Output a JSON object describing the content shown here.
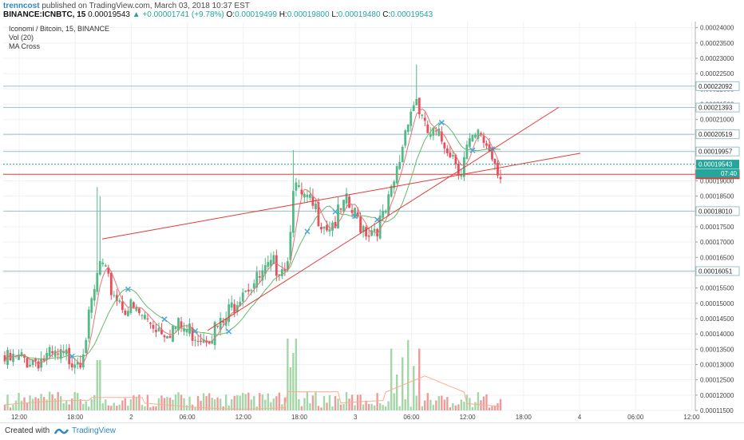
{
  "header": {
    "author": "trenncost",
    "published": "published on TradingView.com, March 03, 2018 10:37 EST",
    "symbol": "BINANCE:ICNBTC, 15",
    "last": "0.00019543",
    "change": "▲ +0.00001741 (+9.78%)",
    "o_label": "O:",
    "o": "0.00019499",
    "h_label": "H:",
    "h": "0.00019800",
    "l_label": "L:",
    "l": "0.00019480",
    "c_label": "C:",
    "c": "0.00019543"
  },
  "legend": {
    "title": "Iconomi / Bitcoin, 15, BINANCE",
    "vol": "Vol (20)",
    "ma": "MA Cross"
  },
  "footer": {
    "created": "Created with",
    "brand": "TradingView"
  },
  "chart_data": {
    "type": "candlestick",
    "ylim": [
      0.000115,
      0.000242
    ],
    "y_ticks": [
      "0.00024000",
      "0.00023500",
      "0.00023000",
      "0.00022500",
      "0.00022000",
      "0.00021500",
      "0.00021000",
      "0.00020500",
      "0.00020000",
      "0.00019500",
      "0.00019000",
      "0.00018500",
      "0.00018000",
      "0.00017500",
      "0.00017000",
      "0.00016500",
      "0.00016000",
      "0.00015500",
      "0.00015000",
      "0.00014500",
      "0.00014000",
      "0.00013500",
      "0.00013000",
      "0.00012500",
      "0.00012000",
      "0.00011500"
    ],
    "x_ticks": [
      "12:00",
      "18:00",
      "2",
      "06:00",
      "12:00",
      "18:00",
      "3",
      "06:00",
      "12:00",
      "18:00",
      "4",
      "06:00",
      "12:00"
    ],
    "horizontal_levels": [
      {
        "label": "0.00022092",
        "color": "#9cc1c7"
      },
      {
        "label": "0.00021393",
        "color": "#9cc1c7"
      },
      {
        "label": "0.00020519",
        "color": "#9cc1c7"
      },
      {
        "label": "0.00019957",
        "color": "#9cc1c7"
      },
      {
        "label": "0.00018010",
        "color": "#9cc1c7"
      },
      {
        "label": "0.00016051",
        "color": "#9cc1c7"
      },
      {
        "label": "0.00019212",
        "color": "#e53935"
      }
    ],
    "last_price": {
      "label": "0.00019543",
      "countdown": "07:40",
      "color": "#26a69a"
    },
    "trendlines": [
      {
        "from": [
          "18:00 Mar1",
          0.000171
        ],
        "to": [
          "21:00 Mar3",
          0.000199
        ]
      },
      {
        "from": [
          "07:30 Mar2",
          0.000141
        ],
        "to": [
          "20:00 Mar3",
          0.000214
        ]
      }
    ],
    "ma_colors": {
      "fast": "#e57373",
      "slow": "#66bb6a"
    },
    "volume_colors": {
      "up": "#a5d6a7",
      "down": "#ef9a9a",
      "ma": "#ffab91"
    }
  }
}
